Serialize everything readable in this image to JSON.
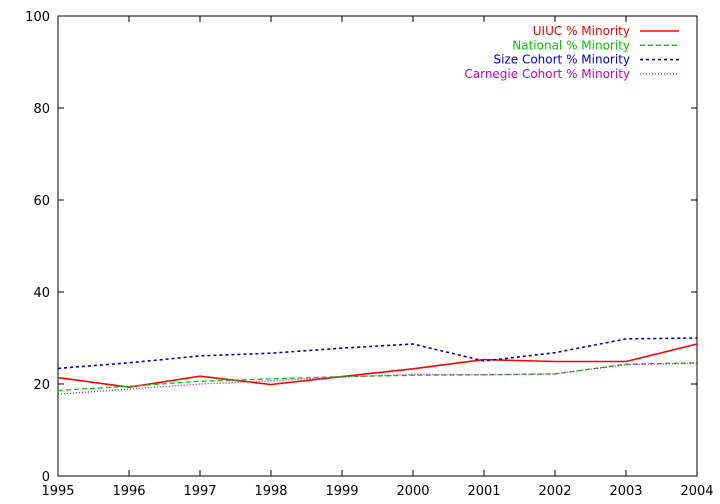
{
  "chart_data": {
    "type": "line",
    "title": "",
    "xlabel": "",
    "ylabel": "",
    "x": [
      1995,
      1996,
      1997,
      1998,
      1999,
      2000,
      2001,
      2002,
      2003,
      2004
    ],
    "xlim": [
      1995,
      2004
    ],
    "ylim": [
      0,
      100
    ],
    "x_ticks": [
      "1995",
      "1996",
      "1997",
      "1998",
      "1999",
      "2000",
      "2001",
      "2002",
      "2003",
      "2004"
    ],
    "y_ticks": [
      "0",
      "20",
      "40",
      "60",
      "80",
      "100"
    ],
    "grid": false,
    "legend_position": "top-right",
    "series": [
      {
        "name": "UIUC % Minority",
        "color": "#ff0000",
        "dash": "solid",
        "values": [
          21.4,
          19.3,
          21.7,
          19.9,
          21.6,
          23.3,
          25.3,
          24.9,
          24.9,
          28.7
        ]
      },
      {
        "name": "National % Minority",
        "color": "#00cc00",
        "dash": "dashed",
        "values": [
          18.6,
          19.5,
          20.6,
          21.1,
          21.6,
          21.9,
          22.0,
          22.2,
          24.3,
          24.6
        ]
      },
      {
        "name": "Size Cohort % Minority",
        "color": "#0000cc",
        "dash": "dotted",
        "values": [
          23.4,
          24.6,
          26.1,
          26.7,
          27.8,
          28.7,
          25.0,
          26.8,
          29.8,
          30.0
        ]
      },
      {
        "name": "Carnegie Cohort % Minority",
        "color": "#cc00cc",
        "dash": "fine-dotted",
        "values": [
          17.8,
          18.9,
          20.0,
          20.7,
          21.5,
          22.1,
          22.0,
          22.2,
          24.2,
          24.5
        ]
      }
    ]
  }
}
